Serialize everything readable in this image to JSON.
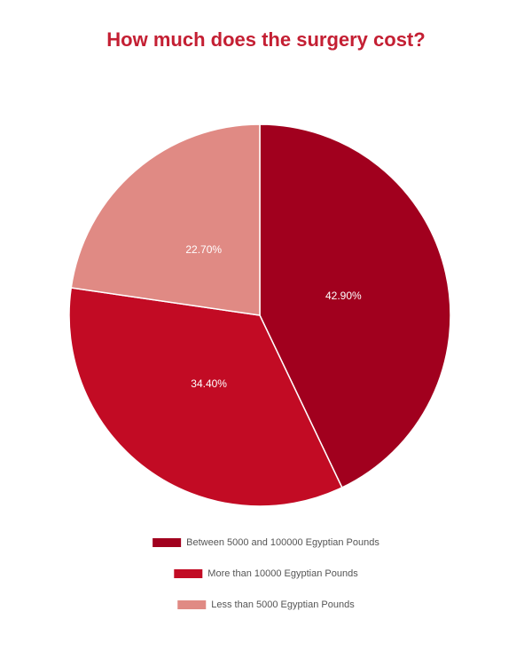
{
  "chart_data": {
    "type": "pie",
    "title": "How much does the surgery cost?",
    "categories": [
      "Between 5000 and 100000 Egyptian Pounds",
      "More than 10000 Egyptian Pounds",
      "Less than 5000 Egyptian Pounds"
    ],
    "values": [
      42.9,
      34.4,
      22.7
    ],
    "value_labels": [
      "42.90%",
      "34.40%",
      "22.70%"
    ],
    "colors": [
      "#a1001e",
      "#c20b24",
      "#e08a84"
    ]
  }
}
